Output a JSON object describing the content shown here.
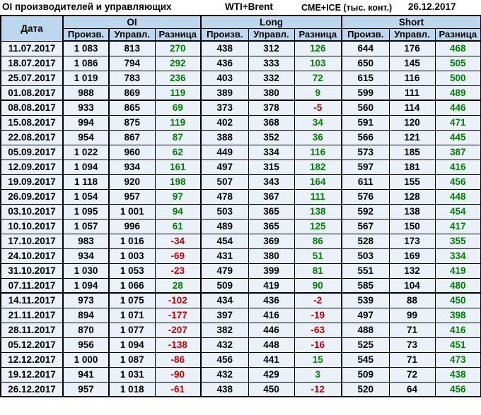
{
  "title_bar": {
    "title": "OI производителей и управляющих",
    "instruments": "WTI+Brent",
    "exchanges": "CME+ICE (тыс. конт.)",
    "report_date": "26.12.2017"
  },
  "table": {
    "date_header": "Дата",
    "group_headers": [
      "OI",
      "Long",
      "Short"
    ],
    "sub_headers": [
      "Произв.",
      "Управл.",
      "Разница"
    ],
    "thick_border_after_dates": [
      "01.08.2017",
      "07.11.2017"
    ],
    "colors": {
      "header_bg": "#BDD7EE",
      "cell_bg": "#EAF1F9",
      "positive": "#008000",
      "negative": "#C00000",
      "border": "#000000"
    }
  },
  "chart_data": {
    "type": "table",
    "title": "OI производителей и управляющих — WTI+Brent, CME+ICE (тыс. конт.), 26.12.2017",
    "columns": [
      "Дата",
      "OI Произв.",
      "OI Управл.",
      "OI Разница",
      "Long Произв.",
      "Long Управл.",
      "Long Разница",
      "Short Произв.",
      "Short Управл.",
      "Short Разница"
    ],
    "rows": [
      [
        "11.07.2017",
        1083,
        813,
        270,
        438,
        312,
        126,
        644,
        176,
        468
      ],
      [
        "18.07.2017",
        1086,
        794,
        292,
        436,
        333,
        103,
        650,
        145,
        505
      ],
      [
        "25.07.2017",
        1019,
        783,
        236,
        403,
        332,
        72,
        615,
        116,
        500
      ],
      [
        "01.08.2017",
        988,
        869,
        119,
        389,
        380,
        9,
        599,
        111,
        489
      ],
      [
        "08.08.2017",
        933,
        865,
        69,
        373,
        378,
        -5,
        560,
        114,
        446
      ],
      [
        "15.08.2017",
        994,
        875,
        119,
        402,
        368,
        34,
        591,
        120,
        471
      ],
      [
        "22.08.2017",
        954,
        867,
        87,
        388,
        352,
        36,
        566,
        121,
        445
      ],
      [
        "05.09.2017",
        1022,
        960,
        62,
        449,
        334,
        116,
        573,
        185,
        387
      ],
      [
        "12.09.2017",
        1094,
        934,
        161,
        497,
        315,
        182,
        597,
        181,
        416
      ],
      [
        "19.09.2017",
        1118,
        920,
        198,
        507,
        343,
        164,
        611,
        155,
        456
      ],
      [
        "26.09.2017",
        1054,
        957,
        97,
        478,
        367,
        111,
        576,
        128,
        448
      ],
      [
        "03.10.2017",
        1095,
        1001,
        94,
        503,
        365,
        138,
        592,
        138,
        454
      ],
      [
        "10.10.2017",
        1057,
        996,
        61,
        489,
        365,
        125,
        567,
        150,
        417
      ],
      [
        "17.10.2017",
        983,
        1016,
        -34,
        454,
        369,
        86,
        528,
        173,
        355
      ],
      [
        "24.10.2017",
        934,
        1003,
        -69,
        431,
        380,
        51,
        503,
        169,
        334
      ],
      [
        "31.10.2017",
        1030,
        1053,
        -23,
        479,
        399,
        81,
        551,
        132,
        419
      ],
      [
        "07.11.2017",
        1094,
        1066,
        28,
        509,
        419,
        90,
        585,
        104,
        480
      ],
      [
        "14.11.2017",
        973,
        1075,
        -102,
        434,
        436,
        -2,
        539,
        88,
        450
      ],
      [
        "21.11.2017",
        894,
        1071,
        -177,
        397,
        416,
        -19,
        497,
        99,
        398
      ],
      [
        "28.11.2017",
        870,
        1077,
        -207,
        382,
        446,
        -63,
        488,
        71,
        416
      ],
      [
        "05.12.2017",
        956,
        1094,
        -138,
        432,
        448,
        -16,
        525,
        73,
        451
      ],
      [
        "12.12.2017",
        1000,
        1087,
        -86,
        456,
        441,
        15,
        545,
        71,
        473
      ],
      [
        "19.12.2017",
        941,
        1031,
        -90,
        432,
        429,
        3,
        509,
        72,
        438
      ],
      [
        "26.12.2017",
        957,
        1018,
        -61,
        438,
        450,
        -12,
        520,
        64,
        456
      ]
    ]
  }
}
